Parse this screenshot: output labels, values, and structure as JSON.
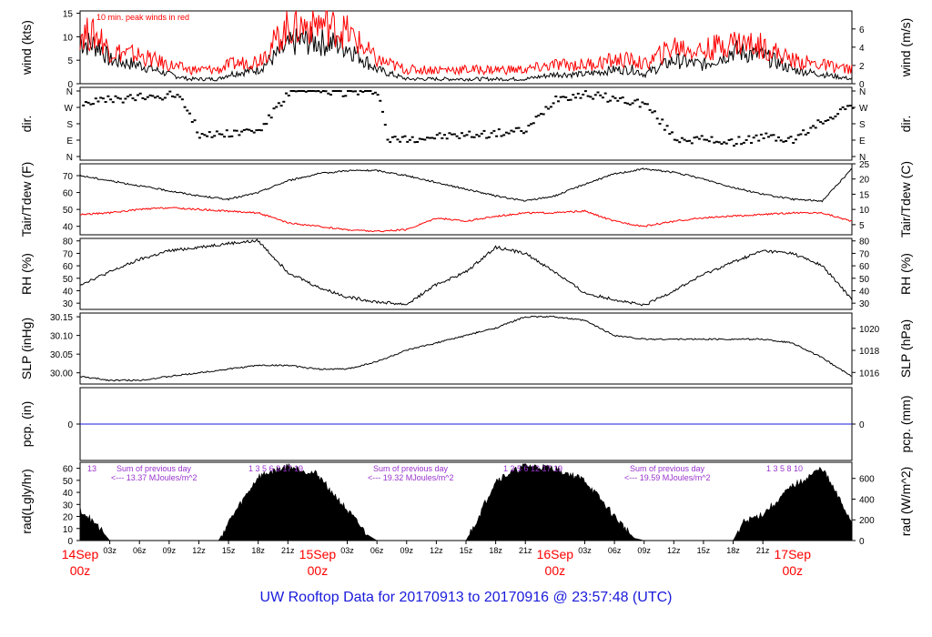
{
  "title": "UW Rooftop Data for 20170913  to  20170916 @ 23:57:48  (UTC)",
  "chart_data": [
    {
      "type": "line",
      "panel": "wind",
      "ylabel_left": "wind (kts)",
      "ylabel_right": "wind (m/s)",
      "annotation": "10 min. peak winds in red",
      "left_ticks": [
        "0",
        "5",
        "10",
        "15"
      ],
      "right_ticks": [
        "0",
        "2",
        "4",
        "6"
      ],
      "ylim": [
        0,
        15.5
      ],
      "series": [
        {
          "color": "#000000",
          "x": [
            0,
            2,
            3,
            6,
            9,
            11,
            12,
            14,
            15,
            18,
            21,
            22,
            24,
            27,
            30,
            33,
            36,
            39,
            42,
            45,
            48,
            51,
            54,
            56,
            57,
            60,
            63,
            66,
            69,
            72,
            75,
            78
          ],
          "y": [
            9,
            8,
            5,
            4,
            2,
            1,
            1,
            1,
            2,
            3,
            8,
            9,
            9,
            8,
            3,
            1,
            1,
            1,
            1,
            1,
            2,
            2,
            3,
            3,
            2,
            5,
            4,
            7,
            6,
            3,
            2,
            1
          ]
        },
        {
          "color": "#ff0000",
          "x": [
            0,
            2,
            3,
            6,
            9,
            11,
            12,
            14,
            15,
            18,
            21,
            22,
            24,
            27,
            30,
            33,
            36,
            39,
            42,
            45,
            48,
            51,
            54,
            56,
            57,
            60,
            63,
            66,
            69,
            72,
            75,
            78
          ],
          "y": [
            11,
            10,
            7,
            6,
            4,
            3,
            3,
            3,
            4,
            5,
            12,
            12,
            13,
            11,
            5,
            3,
            3,
            3,
            3,
            3,
            4,
            4,
            5,
            5,
            4,
            8,
            7,
            9,
            8,
            5,
            4,
            3
          ]
        }
      ]
    },
    {
      "type": "scatter",
      "panel": "direction",
      "ylabel_left": "dir.",
      "ylabel_right": "dir.",
      "left_ticks": [
        "N",
        "E",
        "S",
        "W",
        "N"
      ],
      "right_ticks": [
        "N",
        "E",
        "S",
        "W",
        "N"
      ]
    },
    {
      "type": "line",
      "panel": "temperature",
      "ylabel_left": "Tair/Tdew (F)",
      "ylabel_right": "Tair/Tdew (C)",
      "left_ticks": [
        "40",
        "50",
        "60",
        "70"
      ],
      "right_ticks": [
        "5",
        "10",
        "15",
        "20",
        "25"
      ],
      "ylim": [
        35,
        77
      ],
      "series": [
        {
          "color": "#000000",
          "x": [
            0,
            3,
            6,
            9,
            12,
            15,
            18,
            21,
            24,
            27,
            30,
            33,
            36,
            39,
            42,
            45,
            48,
            51,
            54,
            57,
            60,
            63,
            66,
            69,
            72,
            75,
            78
          ],
          "y": [
            70,
            67,
            64,
            61,
            58,
            56,
            60,
            67,
            71,
            73,
            73,
            70,
            66,
            62,
            58,
            55,
            58,
            65,
            71,
            74,
            72,
            68,
            63,
            59,
            56,
            55,
            74
          ]
        },
        {
          "color": "#ff0000",
          "x": [
            0,
            3,
            6,
            9,
            12,
            15,
            18,
            21,
            24,
            27,
            30,
            33,
            36,
            39,
            42,
            45,
            48,
            51,
            54,
            57,
            60,
            63,
            66,
            69,
            72,
            75,
            78
          ],
          "y": [
            47,
            48,
            50,
            51,
            50,
            49,
            48,
            42,
            40,
            38,
            37,
            38,
            45,
            43,
            46,
            48,
            48,
            49,
            43,
            40,
            43,
            45,
            46,
            47,
            48,
            48,
            43
          ]
        }
      ]
    },
    {
      "type": "line",
      "panel": "humidity",
      "ylabel_left": "RH (%)",
      "ylabel_right": "RH (%)",
      "left_ticks": [
        "30",
        "40",
        "50",
        "60",
        "70",
        "80"
      ],
      "right_ticks": [
        "30",
        "40",
        "50",
        "60",
        "70",
        "80"
      ],
      "ylim": [
        25,
        82
      ],
      "series": [
        {
          "color": "#000000",
          "x": [
            0,
            3,
            6,
            9,
            12,
            15,
            18,
            21,
            24,
            27,
            30,
            33,
            36,
            39,
            42,
            45,
            48,
            51,
            54,
            57,
            60,
            63,
            66,
            69,
            72,
            75,
            78
          ],
          "y": [
            45,
            55,
            65,
            72,
            75,
            78,
            80,
            55,
            43,
            35,
            31,
            29,
            45,
            55,
            75,
            70,
            55,
            38,
            33,
            28,
            40,
            53,
            63,
            72,
            70,
            60,
            33
          ]
        }
      ]
    },
    {
      "type": "line",
      "panel": "pressure",
      "ylabel_left": "SLP (inHg)",
      "ylabel_right": "SLP (hPa)",
      "left_ticks": [
        "30.00",
        "30.05",
        "30.10",
        "30.15"
      ],
      "right_ticks": [
        "1016",
        "1018",
        "1020"
      ],
      "ylim": [
        29.97,
        30.16
      ],
      "series": [
        {
          "color": "#000000",
          "x": [
            0,
            3,
            6,
            9,
            12,
            15,
            18,
            21,
            24,
            27,
            30,
            33,
            36,
            39,
            42,
            45,
            48,
            51,
            54,
            57,
            60,
            63,
            66,
            69,
            72,
            75,
            78
          ],
          "y": [
            29.99,
            29.98,
            29.98,
            29.99,
            30.0,
            30.01,
            30.02,
            30.02,
            30.01,
            30.01,
            30.03,
            30.06,
            30.08,
            30.1,
            30.12,
            30.15,
            30.15,
            30.14,
            30.1,
            30.09,
            30.09,
            30.09,
            30.09,
            30.09,
            30.08,
            30.04,
            29.99
          ]
        }
      ]
    },
    {
      "type": "line",
      "panel": "precipitation",
      "ylabel_left": "pcp. (in)",
      "ylabel_right": "pcp. (mm)",
      "left_ticks": [
        "0"
      ],
      "right_ticks": [
        "0"
      ],
      "ylim": [
        -1,
        1
      ],
      "series": [
        {
          "color": "#1a1adb",
          "x": [
            0,
            78
          ],
          "y": [
            0,
            0
          ]
        }
      ]
    },
    {
      "type": "area",
      "panel": "radiation",
      "ylabel_left": "rad(Lgly/hr)",
      "ylabel_right": "rad (W/m^2)",
      "left_ticks": [
        "0",
        "10",
        "20",
        "30",
        "40",
        "50",
        "60"
      ],
      "right_ticks": [
        "0",
        "200",
        "400",
        "600"
      ],
      "ylim": [
        0,
        65
      ],
      "series": [
        {
          "color": "#000000",
          "x": [
            0,
            2,
            3,
            14,
            15,
            18,
            21,
            24,
            27,
            29,
            30,
            39,
            40,
            42,
            45,
            48,
            51,
            54,
            56,
            57,
            66,
            67,
            69,
            72,
            75,
            77,
            78
          ],
          "y": [
            26,
            10,
            0,
            0,
            15,
            53,
            62,
            55,
            25,
            5,
            0,
            0,
            15,
            50,
            62,
            60,
            50,
            20,
            2,
            0,
            0,
            15,
            22,
            45,
            60,
            30,
            15
          ]
        }
      ]
    }
  ],
  "annotations": {
    "day1_sum_label": "Sum of previous day",
    "day1_sum_value": "<--- 13.37 MJoules/m^2",
    "day2_sum_label": "Sum of previous day",
    "day2_sum_value": "<--- 19.32 MJoules/m^2",
    "day3_sum_label": "Sum of previous day",
    "day3_sum_value": "<--- 19.59 MJoules/m^2",
    "hour_marks_day0": "13",
    "hour_marks_day1": "1   3   5   6   3   17   19",
    "hour_marks_day2": "1   3   5   6   12   17   19",
    "hour_marks_day3": "1   3   5   8   10"
  },
  "x_axis": {
    "major_ticks": [
      {
        "date": "14Sep",
        "time": "00z"
      },
      {
        "date": "15Sep",
        "time": "00z"
      },
      {
        "date": "16Sep",
        "time": "00z"
      },
      {
        "date": "17Sep",
        "time": "00z"
      }
    ],
    "minor_labels": [
      "03z",
      "06z",
      "09z",
      "12z",
      "15z",
      "18z",
      "21z",
      "03z",
      "06z",
      "09z",
      "12z",
      "15z",
      "18z",
      "21z",
      "03z",
      "06z",
      "09z",
      "12z",
      "15z",
      "18z",
      "21z"
    ]
  },
  "colors": {
    "major_date_color": "#ff0000",
    "title_color": "#1a1adb",
    "annotation_color": "#9932cc",
    "peak_color": "#ff0000"
  }
}
